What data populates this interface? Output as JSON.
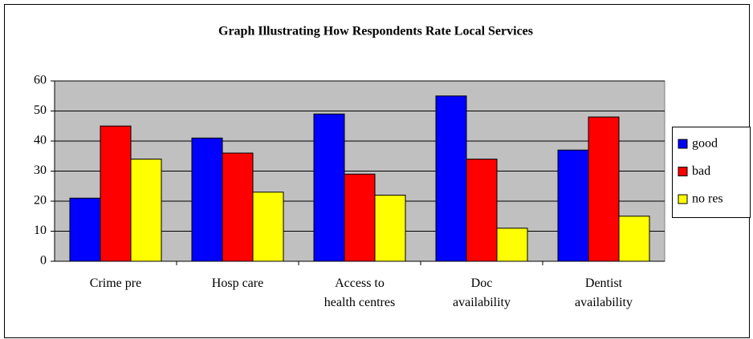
{
  "chart_data": {
    "type": "bar",
    "title": "Graph Illustrating How Respondents Rate Local Services",
    "categories": [
      "Crime pre",
      "Hosp care",
      "Access to\nhealth centres",
      "Doc\navailability",
      "Dentist\navailability"
    ],
    "series": [
      {
        "name": "good",
        "color": "#0000ff",
        "values": [
          21,
          41,
          49,
          55,
          37
        ]
      },
      {
        "name": "bad",
        "color": "#ff0000",
        "values": [
          45,
          36,
          29,
          34,
          48
        ]
      },
      {
        "name": "no res",
        "color": "#ffff00",
        "values": [
          34,
          23,
          22,
          11,
          15
        ]
      }
    ],
    "ylim": [
      0,
      60
    ],
    "yticks": [
      0,
      10,
      20,
      30,
      40,
      50,
      60
    ],
    "grid": true,
    "legend": "right"
  }
}
